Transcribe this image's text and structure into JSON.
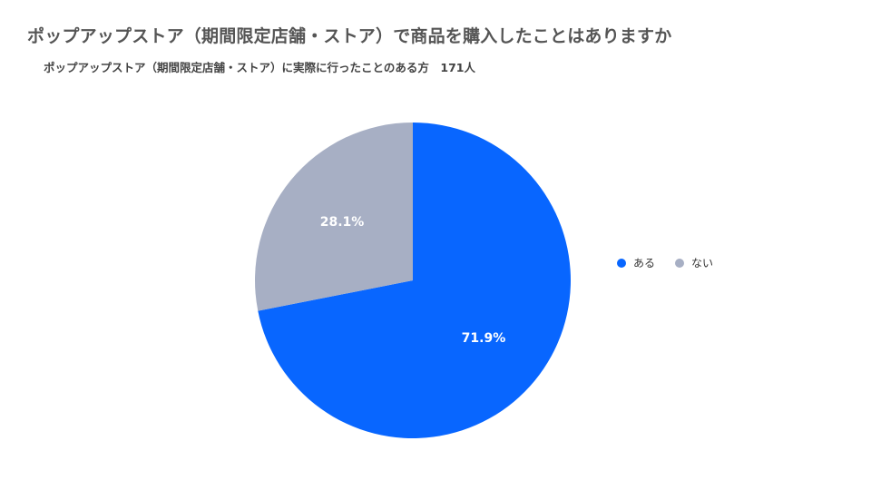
{
  "header": {
    "title": "ポップアップストア（期間限定店舗・ストア）で商品を購入したことはありますか",
    "subtitle": "ポップアップストア（期間限定店舗・ストア）に実際に行ったことのある方　171人"
  },
  "chart_data": {
    "type": "pie",
    "title": "ポップアップストア（期間限定店舗・ストア）で商品を購入したことはありますか",
    "subtitle": "ポップアップストア（期間限定店舗・ストア）に実際に行ったことのある方　171人",
    "slices": [
      {
        "label": "ある",
        "value": 71.9,
        "display": "71.9%",
        "color": "#0866ff"
      },
      {
        "label": "ない",
        "value": 28.1,
        "display": "28.1%",
        "color": "#a7afc4"
      }
    ],
    "start": "top",
    "direction": "clockwise",
    "legend_position": "right"
  },
  "legend": {
    "items": [
      {
        "label": "ある",
        "color": "#0866ff"
      },
      {
        "label": "ない",
        "color": "#a7afc4"
      }
    ]
  }
}
